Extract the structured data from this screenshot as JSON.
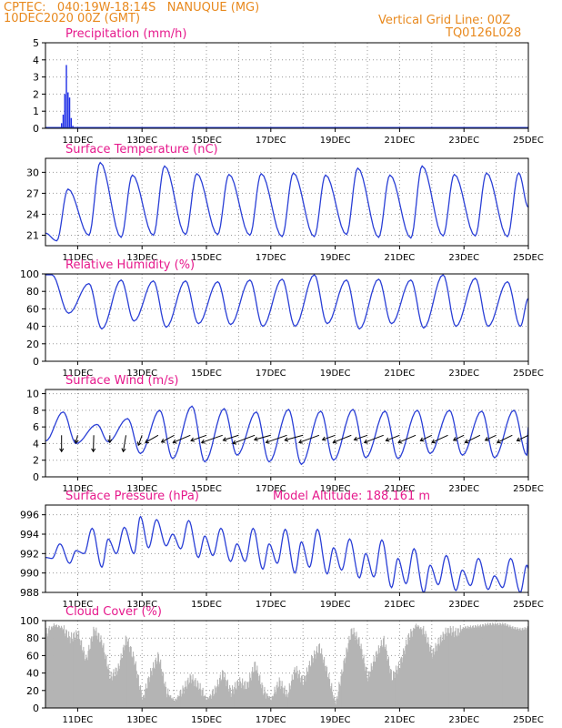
{
  "header": {
    "line1": "CPTEC:   040:19W-18:14S   NANUQUE (MG)",
    "line2": "10DEC2020 00Z (GMT)",
    "right1": "Vertical Grid Line: 00Z",
    "right2": "TQ0126L028"
  },
  "colors": {
    "header": "#e8891e",
    "panel_title": "#e6198c",
    "line": "#2a3fd6",
    "precip_bar": "#1e2ee6",
    "cloud_fill": "#b4b4b4",
    "wind_arrow": "#000000",
    "grid": "#9a9a9a"
  },
  "x_axis": {
    "start_day": 10,
    "end_day": 25,
    "tick_labels": [
      "11DEC",
      "13DEC",
      "15DEC",
      "17DEC",
      "19DEC",
      "21DEC",
      "23DEC",
      "25DEC"
    ],
    "tick_days": [
      11,
      13,
      15,
      17,
      19,
      21,
      23,
      25
    ]
  },
  "chart_data": [
    {
      "id": "precip",
      "type": "bar",
      "title": "Precipitation (mm/h)",
      "ylim": [
        0,
        5
      ],
      "yticks": [
        0,
        1,
        2,
        3,
        4,
        5
      ],
      "day": [
        10.5,
        10.55,
        10.6,
        10.65,
        10.7,
        10.75,
        10.8,
        10.85,
        10.9
      ],
      "values": [
        0.3,
        0.8,
        2.0,
        3.7,
        2.1,
        1.8,
        0.6,
        0.15,
        0.05
      ]
    },
    {
      "id": "temperature",
      "type": "line",
      "title": "Surface Temperature (nC)",
      "ylim": [
        19.5,
        32
      ],
      "yticks": [
        21,
        24,
        27,
        30
      ],
      "day_min": [
        10.35,
        11.35,
        12.35,
        13.35,
        14.35,
        15.35,
        16.35,
        17.35,
        18.35,
        19.35,
        20.35,
        21.35,
        22.35,
        23.35,
        24.35
      ],
      "tmin": [
        20.2,
        21.0,
        20.7,
        21.0,
        21.1,
        21.1,
        21.0,
        20.8,
        20.8,
        21.1,
        20.7,
        20.6,
        20.9,
        20.9,
        20.8
      ],
      "day_max": [
        10.7,
        11.7,
        12.7,
        13.7,
        14.7,
        15.7,
        16.7,
        17.7,
        18.7,
        19.7,
        20.7,
        21.7,
        22.7,
        23.7,
        24.7
      ],
      "tmax": [
        27.6,
        31.4,
        29.6,
        30.9,
        29.8,
        29.7,
        29.8,
        29.9,
        29.6,
        30.6,
        29.6,
        30.9,
        29.7,
        29.9,
        29.9
      ]
    },
    {
      "id": "humidity",
      "type": "line",
      "title": "Relative Humidity (%)",
      "ylim": [
        0,
        100
      ],
      "yticks": [
        0,
        20,
        40,
        60,
        80,
        100
      ],
      "day_max": [
        10.2,
        11.35,
        12.35,
        13.35,
        14.35,
        15.35,
        16.35,
        17.35,
        18.35,
        19.35,
        20.35,
        21.35,
        22.35,
        23.35,
        24.35
      ],
      "rhmax": [
        99,
        89,
        93,
        92,
        92,
        91,
        93,
        94,
        99,
        93,
        94,
        93,
        99,
        95,
        91
      ],
      "day_min": [
        10.72,
        11.75,
        12.75,
        13.75,
        14.75,
        15.75,
        16.75,
        17.75,
        18.75,
        19.75,
        20.75,
        21.75,
        22.75,
        23.75,
        24.75
      ],
      "rhmin": [
        55,
        37,
        46,
        39,
        43,
        42,
        40,
        40,
        43,
        37,
        43,
        38,
        40,
        40,
        40
      ]
    },
    {
      "id": "wind",
      "type": "line",
      "title": "Surface Wind (m/s)",
      "ylim": [
        0,
        10.5
      ],
      "yticks": [
        0,
        2,
        4,
        6,
        8,
        10
      ],
      "day_max": [
        10.55,
        11.6,
        12.55,
        13.55,
        14.55,
        15.55,
        16.55,
        17.55,
        18.55,
        19.55,
        20.55,
        21.55,
        22.55,
        23.55,
        24.55
      ],
      "wmax": [
        7.8,
        6.3,
        7.0,
        8.0,
        8.5,
        8.2,
        7.8,
        8.1,
        7.9,
        8.1,
        7.9,
        8.0,
        8.0,
        7.9,
        8.0
      ],
      "day_min": [
        10.95,
        11.95,
        12.95,
        13.95,
        14.95,
        15.95,
        16.95,
        17.95,
        18.95,
        19.95,
        20.95,
        21.95,
        22.95,
        23.95,
        24.95
      ],
      "wmin": [
        4.0,
        4.2,
        2.8,
        2.2,
        1.8,
        2.6,
        1.8,
        1.5,
        2.0,
        2.3,
        2.2,
        2.8,
        2.6,
        2.3,
        2.6
      ],
      "arrow_days": [
        10.5,
        11.0,
        11.5,
        12.0,
        12.5,
        13.0,
        13.5,
        14.0,
        14.5,
        15.0,
        15.5,
        16.0,
        16.5,
        17.0,
        17.5,
        18.0,
        18.5,
        19.0,
        19.5,
        20.0,
        20.5,
        21.0,
        21.5,
        22.0,
        22.5,
        23.0,
        23.5,
        24.0,
        24.5,
        25.0
      ],
      "arrow_u": [
        0,
        -0.4,
        -0.1,
        0,
        -0.6,
        -0.8,
        -2.8,
        -2.8,
        -3.8,
        -3.4,
        -4.6,
        -3.4,
        -4.8,
        -3.6,
        -4.6,
        -4.0,
        -4.4,
        -2.8,
        -4.0,
        -2.9,
        -4.2,
        -3.0,
        -3.8,
        -2.5,
        -3.5,
        -2.3,
        -3.3,
        -2.4,
        -3.3,
        -2.5
      ],
      "arrow_v": [
        -3.6,
        -1.7,
        -3.6,
        -1.6,
        -3.6,
        -2.2,
        -1.6,
        -1.5,
        -1.6,
        -1.2,
        -1.6,
        -1.1,
        -1.8,
        -1.0,
        -1.6,
        -1.1,
        -1.6,
        -1.0,
        -1.6,
        -1.0,
        -1.6,
        -1.2,
        -1.6,
        -1.2,
        -1.6,
        -1.1,
        -1.6,
        -1.1,
        -1.6,
        -1.2
      ]
    },
    {
      "id": "pressure",
      "type": "line",
      "title": "Surface Pressure (hPa)",
      "subtitle": "Model Altitude: 188.161 m",
      "ylim": [
        988,
        997
      ],
      "yticks": [
        988,
        990,
        992,
        994,
        996
      ],
      "day_max": [
        10.45,
        10.95,
        11.45,
        11.95,
        12.45,
        12.95,
        13.45,
        13.95,
        14.45,
        14.95,
        15.45,
        15.95,
        16.45,
        16.95,
        17.45,
        17.95,
        18.45,
        18.95,
        19.45,
        19.95,
        20.45,
        20.95,
        21.45,
        21.95,
        22.45,
        22.95,
        23.45,
        23.95,
        24.45,
        24.95
      ],
      "pmax": [
        993.0,
        992.3,
        994.6,
        993.5,
        994.7,
        995.8,
        995.5,
        994.0,
        995.4,
        993.8,
        994.6,
        993.0,
        994.6,
        993.0,
        994.5,
        993.2,
        994.5,
        992.6,
        993.5,
        992.0,
        993.4,
        991.5,
        992.5,
        990.8,
        991.8,
        990.3,
        991.5,
        989.7,
        991.5,
        990.8
      ],
      "day_min": [
        10.2,
        10.75,
        11.2,
        11.75,
        12.2,
        12.75,
        13.2,
        13.75,
        14.2,
        14.75,
        15.2,
        15.75,
        16.2,
        16.75,
        17.2,
        17.75,
        18.2,
        18.75,
        19.2,
        19.75,
        20.2,
        20.75,
        21.2,
        21.75,
        22.2,
        22.75,
        23.2,
        23.75,
        24.2,
        24.75
      ],
      "pmin": [
        991.5,
        991.0,
        992.0,
        990.6,
        992.0,
        992.0,
        992.6,
        992.8,
        992.5,
        991.6,
        991.8,
        991.2,
        991.2,
        990.4,
        991.0,
        990.0,
        990.6,
        989.9,
        990.3,
        989.5,
        989.6,
        988.5,
        988.9,
        988.0,
        988.8,
        988.2,
        988.7,
        988.3,
        988.5,
        988.0
      ]
    },
    {
      "id": "cloud",
      "type": "bar",
      "title": "Cloud Cover (%)",
      "ylim": [
        0,
        100
      ],
      "yticks": [
        0,
        20,
        40,
        60,
        80,
        100
      ],
      "day": [
        10.0,
        10.25,
        10.5,
        10.75,
        11.0,
        11.25,
        11.5,
        11.75,
        12.0,
        12.25,
        12.5,
        12.75,
        13.0,
        13.25,
        13.5,
        13.75,
        14.0,
        14.25,
        14.5,
        14.75,
        15.0,
        15.25,
        15.5,
        15.75,
        16.0,
        16.25,
        16.5,
        16.75,
        17.0,
        17.25,
        17.5,
        17.75,
        18.0,
        18.25,
        18.5,
        18.75,
        19.0,
        19.25,
        19.5,
        19.75,
        20.0,
        20.25,
        20.5,
        20.75,
        21.0,
        21.25,
        21.5,
        21.75,
        22.0,
        22.25,
        22.5,
        22.75,
        23.0,
        23.25,
        23.5,
        23.75,
        24.0,
        24.25,
        24.5,
        24.75,
        25.0
      ],
      "values": [
        85,
        95,
        92,
        80,
        85,
        55,
        90,
        75,
        35,
        45,
        80,
        55,
        10,
        40,
        60,
        18,
        8,
        20,
        35,
        25,
        10,
        20,
        40,
        18,
        30,
        25,
        50,
        20,
        10,
        30,
        15,
        45,
        30,
        55,
        70,
        40,
        5,
        50,
        90,
        75,
        35,
        60,
        78,
        35,
        50,
        80,
        95,
        88,
        62,
        78,
        90,
        86,
        92,
        93,
        94,
        96,
        96,
        96,
        92,
        90,
        92
      ]
    }
  ]
}
